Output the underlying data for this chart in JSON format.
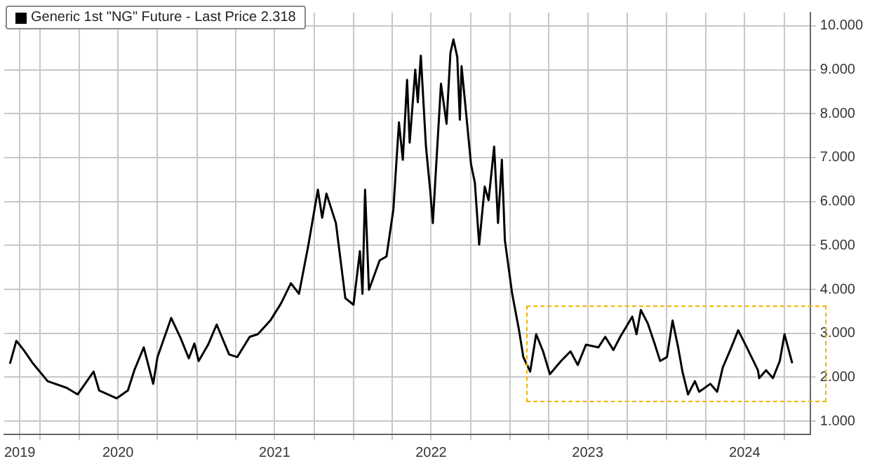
{
  "chart_data": {
    "type": "line",
    "legend": "top left",
    "grid": true,
    "marker": "none",
    "line_style": "solid",
    "xlim": [
      "2019-10-10",
      "2024-12-01"
    ],
    "ylim": [
      0.7,
      10.3
    ],
    "yticks": [
      {
        "value": 1,
        "label": "1.000"
      },
      {
        "value": 2,
        "label": "2.000"
      },
      {
        "value": 3,
        "label": "3.000"
      },
      {
        "value": 4,
        "label": "4.000"
      },
      {
        "value": 5,
        "label": "5.000"
      },
      {
        "value": 6,
        "label": "6.000"
      },
      {
        "value": 7,
        "label": "7.000"
      },
      {
        "value": 8,
        "label": "8.000"
      },
      {
        "value": 9,
        "label": "9.000"
      },
      {
        "value": 10,
        "label": "10.000"
      }
    ],
    "xticks": [
      {
        "value": "2019-11-15",
        "label": "2019"
      },
      {
        "value": "2020-01-01",
        "label": null
      },
      {
        "value": "2020-04-01",
        "label": null
      },
      {
        "value": "2020-07-01",
        "label": "2020"
      },
      {
        "value": "2020-10-01",
        "label": null
      },
      {
        "value": "2021-01-01",
        "label": null
      },
      {
        "value": "2021-04-01",
        "label": null
      },
      {
        "value": "2021-07-01",
        "label": "2021"
      },
      {
        "value": "2021-10-01",
        "label": null
      },
      {
        "value": "2022-01-01",
        "label": null
      },
      {
        "value": "2022-04-01",
        "label": null
      },
      {
        "value": "2022-07-01",
        "label": "2022"
      },
      {
        "value": "2022-10-01",
        "label": null
      },
      {
        "value": "2023-01-01",
        "label": null
      },
      {
        "value": "2023-04-01",
        "label": null
      },
      {
        "value": "2023-07-01",
        "label": "2023"
      },
      {
        "value": "2023-10-01",
        "label": null
      },
      {
        "value": "2024-01-01",
        "label": null
      },
      {
        "value": "2024-04-01",
        "label": null
      },
      {
        "value": "2024-07-01",
        "label": "2024"
      },
      {
        "value": "2024-10-01",
        "label": null
      }
    ],
    "series": [
      {
        "name": "Generic 1st \"NG\" Future - Last Price 2.318",
        "color": "#000000",
        "x": [
          "2019-10-23",
          "2019-11-07",
          "2019-11-24",
          "2019-12-16",
          "2020-01-19",
          "2020-03-03",
          "2020-03-29",
          "2020-05-05",
          "2020-05-18",
          "2020-06-28",
          "2020-07-24",
          "2020-08-08",
          "2020-08-30",
          "2020-09-21",
          "2020-10-01",
          "2020-11-02",
          "2020-11-24",
          "2020-12-13",
          "2020-12-26",
          "2021-01-05",
          "2021-01-27",
          "2021-02-16",
          "2021-03-17",
          "2021-04-05",
          "2021-05-04",
          "2021-05-23",
          "2021-06-21",
          "2021-07-16",
          "2021-08-08",
          "2021-08-27",
          "2021-09-18",
          "2021-10-10",
          "2021-10-20",
          "2021-10-30",
          "2021-11-21",
          "2021-12-13",
          "2022-01-01",
          "2022-01-16",
          "2022-01-22",
          "2022-01-28",
          "2022-02-06",
          "2022-03-03",
          "2022-03-19",
          "2022-04-04",
          "2022-04-17",
          "2022-04-26",
          "2022-05-06",
          "2022-05-12",
          "2022-05-25",
          "2022-05-31",
          "2022-06-07",
          "2022-06-19",
          "2022-06-29",
          "2022-07-05",
          "2022-07-24",
          "2022-08-06",
          "2022-08-15",
          "2022-08-22",
          "2022-08-31",
          "2022-09-06",
          "2022-09-10",
          "2022-09-23",
          "2022-10-02",
          "2022-10-11",
          "2022-10-21",
          "2022-11-03",
          "2022-11-12",
          "2022-11-25",
          "2022-12-04",
          "2022-12-13",
          "2022-12-20",
          "2023-01-06",
          "2023-01-22",
          "2023-02-01",
          "2023-02-17",
          "2023-03-03",
          "2023-03-19",
          "2023-04-04",
          "2023-04-30",
          "2023-05-22",
          "2023-06-08",
          "2023-06-27",
          "2023-07-26",
          "2023-08-11",
          "2023-08-30",
          "2023-09-15",
          "2023-10-13",
          "2023-10-23",
          "2023-11-02",
          "2023-11-18",
          "2023-12-04",
          "2023-12-17",
          "2024-01-02",
          "2024-01-15",
          "2024-01-28",
          "2024-02-07",
          "2024-02-20",
          "2024-03-07",
          "2024-03-17",
          "2024-04-12",
          "2024-04-28",
          "2024-05-11",
          "2024-05-31",
          "2024-06-16",
          "2024-07-03",
          "2024-08-01",
          "2024-08-04",
          "2024-08-20",
          "2024-09-05",
          "2024-09-21",
          "2024-10-02",
          "2024-10-20"
        ],
        "values": [
          2.31,
          2.83,
          2.62,
          2.31,
          1.91,
          1.76,
          1.61,
          2.13,
          1.7,
          1.52,
          1.7,
          2.16,
          2.68,
          1.85,
          2.46,
          3.35,
          2.89,
          2.43,
          2.77,
          2.37,
          2.74,
          3.2,
          2.52,
          2.46,
          2.92,
          2.98,
          3.29,
          3.68,
          4.14,
          3.9,
          5.02,
          6.27,
          5.63,
          6.18,
          5.51,
          3.8,
          3.65,
          4.87,
          3.9,
          6.27,
          3.99,
          4.66,
          4.75,
          5.82,
          7.8,
          6.95,
          8.77,
          7.34,
          9.0,
          8.26,
          9.32,
          7.25,
          6.24,
          5.51,
          8.68,
          7.77,
          9.38,
          9.69,
          9.29,
          7.86,
          9.08,
          7.77,
          6.85,
          6.43,
          5.02,
          6.34,
          6.03,
          7.25,
          5.51,
          6.95,
          5.12,
          3.9,
          3.07,
          2.46,
          2.13,
          2.98,
          2.59,
          2.07,
          2.37,
          2.59,
          2.28,
          2.74,
          2.68,
          2.92,
          2.62,
          2.92,
          3.38,
          2.98,
          3.53,
          3.23,
          2.77,
          2.37,
          2.46,
          3.29,
          2.68,
          2.13,
          1.61,
          1.91,
          1.67,
          1.85,
          1.67,
          2.22,
          2.68,
          3.07,
          2.74,
          2.16,
          1.98,
          2.16,
          1.98,
          2.37,
          2.98,
          2.32
        ]
      }
    ]
  }
}
